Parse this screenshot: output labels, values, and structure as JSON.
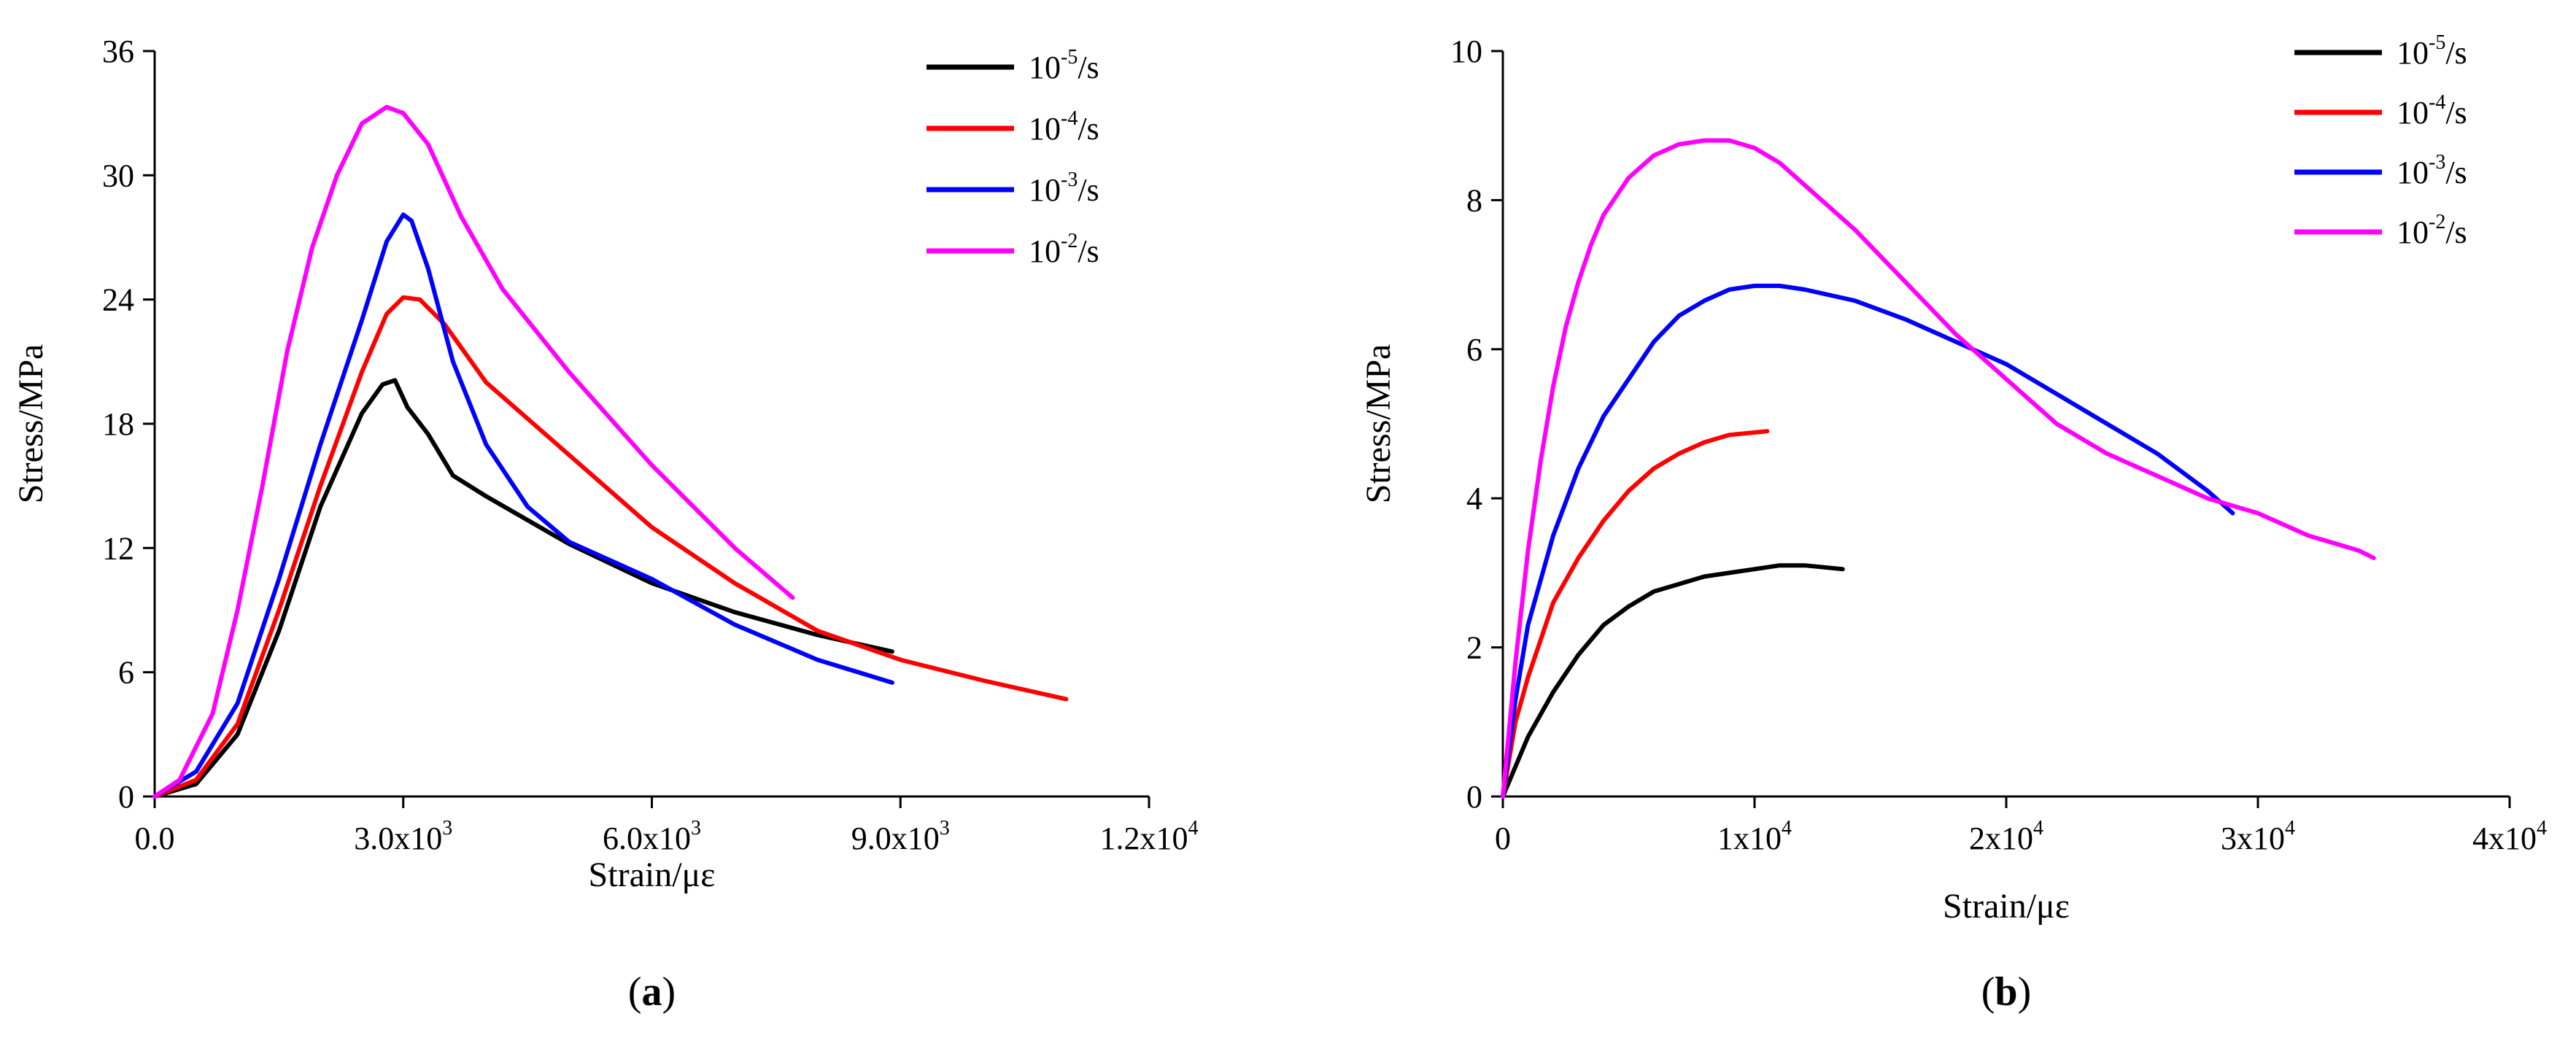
{
  "colors": {
    "s1": "#000000",
    "s2": "#ff0000",
    "s3": "#0000ff",
    "s4": "#ff00ff"
  },
  "chart_data": [
    {
      "type": "line",
      "panel_label": {
        "open": "(",
        "letter": "a",
        "close": ")"
      },
      "xlabel": "Strain/με",
      "ylabel": "Stress/MPa",
      "xlim": [
        0,
        12000
      ],
      "ylim": [
        0,
        36
      ],
      "xticks": [
        0,
        3000,
        6000,
        9000,
        12000
      ],
      "xtick_labels": [
        {
          "base": "0.0",
          "exp": ""
        },
        {
          "base": "3.0x10",
          "exp": "3"
        },
        {
          "base": "6.0x10",
          "exp": "3"
        },
        {
          "base": "9.0x10",
          "exp": "3"
        },
        {
          "base": "1.2x10",
          "exp": "4"
        }
      ],
      "yticks": [
        0,
        6,
        12,
        18,
        24,
        30,
        36
      ],
      "ytick_labels": [
        "0",
        "6",
        "12",
        "18",
        "24",
        "30",
        "36"
      ],
      "legend_position": "top-right",
      "series": [
        {
          "name": "10-5/s",
          "legend": {
            "base": "10",
            "exp": "-5",
            "unit": "/s"
          },
          "color": "#000000",
          "points": [
            [
              0,
              0
            ],
            [
              500,
              0.6
            ],
            [
              1000,
              3
            ],
            [
              1500,
              8
            ],
            [
              2000,
              14
            ],
            [
              2500,
              18.5
            ],
            [
              2750,
              19.9
            ],
            [
              2900,
              20.1
            ],
            [
              3050,
              18.8
            ],
            [
              3300,
              17.5
            ],
            [
              3600,
              15.5
            ],
            [
              4000,
              14.5
            ],
            [
              5000,
              12.2
            ],
            [
              6000,
              10.3
            ],
            [
              7000,
              8.9
            ],
            [
              8000,
              7.8
            ],
            [
              8900,
              7.0
            ]
          ]
        },
        {
          "name": "10-4/s",
          "legend": {
            "base": "10",
            "exp": "-4",
            "unit": "/s"
          },
          "color": "#ff0000",
          "points": [
            [
              0,
              0
            ],
            [
              500,
              0.8
            ],
            [
              1000,
              3.5
            ],
            [
              1500,
              9
            ],
            [
              2000,
              15
            ],
            [
              2500,
              20.5
            ],
            [
              2800,
              23.3
            ],
            [
              3000,
              24.1
            ],
            [
              3200,
              24.0
            ],
            [
              3500,
              22.8
            ],
            [
              4000,
              20
            ],
            [
              5000,
              16.5
            ],
            [
              6000,
              13
            ],
            [
              7000,
              10.3
            ],
            [
              8000,
              8
            ],
            [
              9000,
              6.6
            ],
            [
              10000,
              5.6
            ],
            [
              11000,
              4.7
            ]
          ]
        },
        {
          "name": "10-3/s",
          "legend": {
            "base": "10",
            "exp": "-3",
            "unit": "/s"
          },
          "color": "#0000ff",
          "points": [
            [
              0,
              0
            ],
            [
              500,
              1.2
            ],
            [
              1000,
              4.5
            ],
            [
              1500,
              10.5
            ],
            [
              2000,
              17
            ],
            [
              2500,
              23
            ],
            [
              2800,
              26.8
            ],
            [
              3000,
              28.1
            ],
            [
              3100,
              27.8
            ],
            [
              3300,
              25.5
            ],
            [
              3600,
              21
            ],
            [
              4000,
              17
            ],
            [
              4500,
              14
            ],
            [
              5000,
              12.3
            ],
            [
              6000,
              10.5
            ],
            [
              7000,
              8.3
            ],
            [
              8000,
              6.6
            ],
            [
              8900,
              5.5
            ]
          ]
        },
        {
          "name": "10-2/s",
          "legend": {
            "base": "10",
            "exp": "-2",
            "unit": "/s"
          },
          "color": "#ff00ff",
          "points": [
            [
              0,
              0
            ],
            [
              300,
              0.8
            ],
            [
              700,
              4
            ],
            [
              1000,
              9
            ],
            [
              1300,
              15
            ],
            [
              1600,
              21.5
            ],
            [
              1900,
              26.5
            ],
            [
              2200,
              30
            ],
            [
              2500,
              32.5
            ],
            [
              2800,
              33.3
            ],
            [
              3000,
              33
            ],
            [
              3300,
              31.5
            ],
            [
              3700,
              28
            ],
            [
              4200,
              24.5
            ],
            [
              5000,
              20.5
            ],
            [
              6000,
              16
            ],
            [
              7000,
              12
            ],
            [
              7700,
              9.6
            ]
          ]
        }
      ]
    },
    {
      "type": "line",
      "panel_label": {
        "open": "(",
        "letter": "b",
        "close": ")"
      },
      "xlabel": "Strain/με",
      "ylabel": "Stress/MPa",
      "xlim": [
        0,
        40000
      ],
      "ylim": [
        0,
        10
      ],
      "xticks": [
        0,
        10000,
        20000,
        30000,
        40000
      ],
      "xtick_labels": [
        {
          "base": "0",
          "exp": ""
        },
        {
          "base": "1x10",
          "exp": "4"
        },
        {
          "base": "2x10",
          "exp": "4"
        },
        {
          "base": "3x10",
          "exp": "4"
        },
        {
          "base": "4x10",
          "exp": "4"
        }
      ],
      "yticks": [
        0,
        2,
        4,
        6,
        8,
        10
      ],
      "ytick_labels": [
        "0",
        "2",
        "4",
        "6",
        "8",
        "10"
      ],
      "legend_position": "top-right",
      "series": [
        {
          "name": "10-5/s",
          "legend": {
            "base": "10",
            "exp": "-5",
            "unit": "/s"
          },
          "color": "#000000",
          "points": [
            [
              0,
              0
            ],
            [
              1000,
              0.8
            ],
            [
              2000,
              1.4
            ],
            [
              3000,
              1.9
            ],
            [
              4000,
              2.3
            ],
            [
              5000,
              2.55
            ],
            [
              6000,
              2.75
            ],
            [
              7000,
              2.85
            ],
            [
              8000,
              2.95
            ],
            [
              9000,
              3.0
            ],
            [
              10000,
              3.05
            ],
            [
              11000,
              3.1
            ],
            [
              12000,
              3.1
            ],
            [
              13500,
              3.05
            ]
          ]
        },
        {
          "name": "10-4/s",
          "legend": {
            "base": "10",
            "exp": "-4",
            "unit": "/s"
          },
          "color": "#ff0000",
          "points": [
            [
              0,
              0
            ],
            [
              500,
              1.0
            ],
            [
              1000,
              1.6
            ],
            [
              1500,
              2.1
            ],
            [
              2000,
              2.6
            ],
            [
              3000,
              3.2
            ],
            [
              4000,
              3.7
            ],
            [
              5000,
              4.1
            ],
            [
              6000,
              4.4
            ],
            [
              7000,
              4.6
            ],
            [
              8000,
              4.75
            ],
            [
              9000,
              4.85
            ],
            [
              10500,
              4.9
            ]
          ]
        },
        {
          "name": "10-3/s",
          "legend": {
            "base": "10",
            "exp": "-3",
            "unit": "/s"
          },
          "color": "#0000ff",
          "points": [
            [
              0,
              0
            ],
            [
              500,
              1.3
            ],
            [
              1000,
              2.3
            ],
            [
              2000,
              3.5
            ],
            [
              3000,
              4.4
            ],
            [
              4000,
              5.1
            ],
            [
              5000,
              5.6
            ],
            [
              6000,
              6.1
            ],
            [
              7000,
              6.45
            ],
            [
              8000,
              6.65
            ],
            [
              9000,
              6.8
            ],
            [
              10000,
              6.85
            ],
            [
              11000,
              6.85
            ],
            [
              12000,
              6.8
            ],
            [
              14000,
              6.65
            ],
            [
              16000,
              6.4
            ],
            [
              18000,
              6.1
            ],
            [
              20000,
              5.8
            ],
            [
              22000,
              5.4
            ],
            [
              24000,
              5.0
            ],
            [
              26000,
              4.6
            ],
            [
              28000,
              4.1
            ],
            [
              29000,
              3.8
            ]
          ]
        },
        {
          "name": "10-2/s",
          "legend": {
            "base": "10",
            "exp": "-2",
            "unit": "/s"
          },
          "color": "#ff00ff",
          "points": [
            [
              0,
              0
            ],
            [
              500,
              1.8
            ],
            [
              1000,
              3.3
            ],
            [
              1500,
              4.5
            ],
            [
              2000,
              5.5
            ],
            [
              2500,
              6.3
            ],
            [
              3000,
              6.9
            ],
            [
              3500,
              7.4
            ],
            [
              4000,
              7.8
            ],
            [
              5000,
              8.3
            ],
            [
              6000,
              8.6
            ],
            [
              7000,
              8.75
            ],
            [
              8000,
              8.8
            ],
            [
              9000,
              8.8
            ],
            [
              10000,
              8.7
            ],
            [
              11000,
              8.5
            ],
            [
              12000,
              8.2
            ],
            [
              14000,
              7.6
            ],
            [
              16000,
              6.9
            ],
            [
              18000,
              6.2
            ],
            [
              20000,
              5.6
            ],
            [
              22000,
              5.0
            ],
            [
              24000,
              4.6
            ],
            [
              26000,
              4.3
            ],
            [
              28000,
              4.0
            ],
            [
              30000,
              3.8
            ],
            [
              32000,
              3.5
            ],
            [
              34000,
              3.3
            ],
            [
              34600,
              3.2
            ]
          ]
        }
      ]
    }
  ]
}
